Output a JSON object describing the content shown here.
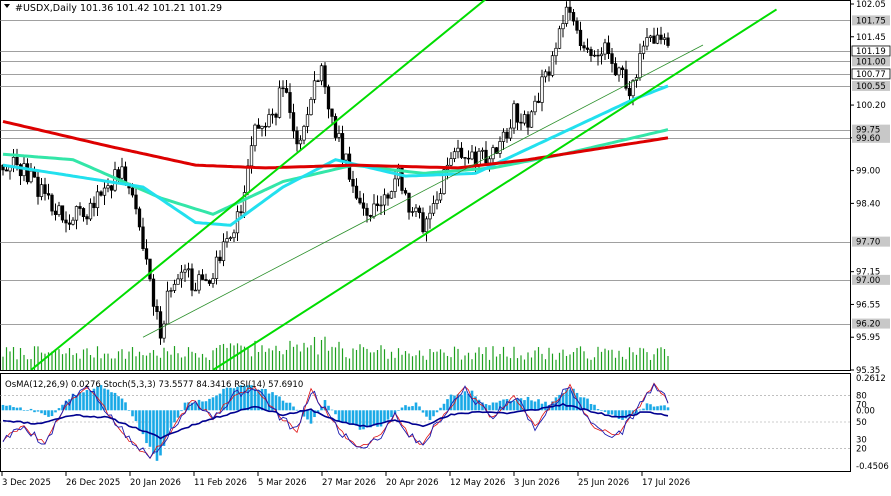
{
  "header": {
    "symbol_label": "#USDX,Daily",
    "ohlc_text": "101.36 101.42 101.21 101.29"
  },
  "indicator_header": "OsMA(12,26,9) 0.0276   Stoch(5,3,3) 73.5577 84.3416   RSI(14) 57.6910",
  "colors": {
    "background": "#ffffff",
    "candle": "#000000",
    "channel": "#00dd00",
    "ma_red": "#dd0000",
    "ma_aqua": "#22e0ee",
    "ma_mint": "#33e6a8",
    "volume": "#1fa01f",
    "osma": "#1aa9e6",
    "stoch_main": "#1c1cb0",
    "stoch_signal": "#e01010",
    "rsi": "#000090"
  },
  "chart_data": {
    "type": "candlestick",
    "timeframe": "Daily",
    "ylim": [
      95.35,
      102.05
    ],
    "price_axis_ticks": [
      "102.05",
      "101.45",
      "100.20",
      "99.60",
      "99.00",
      "98.40",
      "97.15",
      "96.55",
      "95.95",
      "95.35"
    ],
    "marked_levels": [
      "101.75",
      "101.19",
      "101.00",
      "100.77",
      "100.55",
      "99.75",
      "99.60",
      "97.70",
      "97.00",
      "96.20"
    ],
    "framed_levels": [
      "101.19",
      "100.77"
    ],
    "date_labels": [
      "3 Dec 2025",
      "26 Dec 2025",
      "20 Jan 2026",
      "11 Feb 2026",
      "5 Mar 2026",
      "27 Mar 2026",
      "20 Apr 2026",
      "12 May 2026",
      "3 Jun 2026",
      "25 Jun 2026",
      "17 Jul 2026"
    ],
    "last_close": 101.29,
    "path_anchors": [
      [
        0,
        99.1
      ],
      [
        5,
        99.05
      ],
      [
        12,
        98.55
      ],
      [
        18,
        98.1
      ],
      [
        24,
        98.25
      ],
      [
        30,
        98.75
      ],
      [
        34,
        98.95
      ],
      [
        37,
        98.6
      ],
      [
        40,
        97.6
      ],
      [
        43,
        96.5
      ],
      [
        45,
        96.0
      ],
      [
        47,
        96.7
      ],
      [
        52,
        97.1
      ],
      [
        55,
        96.9
      ],
      [
        60,
        97.1
      ],
      [
        64,
        97.7
      ],
      [
        68,
        98.3
      ],
      [
        72,
        99.7
      ],
      [
        78,
        100.1
      ],
      [
        80,
        100.6
      ],
      [
        84,
        99.4
      ],
      [
        88,
        100.4
      ],
      [
        91,
        100.8
      ],
      [
        94,
        99.9
      ],
      [
        100,
        98.8
      ],
      [
        104,
        98.2
      ],
      [
        107,
        98.4
      ],
      [
        111,
        98.6
      ],
      [
        113,
        98.95
      ],
      [
        116,
        98.4
      ],
      [
        120,
        98.0
      ],
      [
        124,
        98.5
      ],
      [
        128,
        99.2
      ],
      [
        132,
        99.35
      ],
      [
        137,
        99.2
      ],
      [
        142,
        99.4
      ],
      [
        146,
        100.05
      ],
      [
        150,
        99.95
      ],
      [
        154,
        100.55
      ],
      [
        158,
        101.2
      ],
      [
        161,
        101.95
      ],
      [
        164,
        101.5
      ],
      [
        168,
        101.1
      ],
      [
        172,
        101.3
      ],
      [
        176,
        100.8
      ],
      [
        179,
        100.5
      ],
      [
        182,
        101.0
      ],
      [
        185,
        101.45
      ],
      [
        188,
        101.35
      ],
      [
        190,
        101.29
      ]
    ],
    "ma_slow_anchors": [
      [
        0,
        99.9
      ],
      [
        30,
        99.45
      ],
      [
        55,
        99.1
      ],
      [
        75,
        99.05
      ],
      [
        100,
        99.1
      ],
      [
        130,
        99.05
      ],
      [
        150,
        99.2
      ],
      [
        170,
        99.4
      ],
      [
        190,
        99.6
      ]
    ],
    "ma_mid_anchors": [
      [
        0,
        99.3
      ],
      [
        20,
        99.2
      ],
      [
        45,
        98.5
      ],
      [
        60,
        98.2
      ],
      [
        80,
        98.8
      ],
      [
        100,
        99.1
      ],
      [
        120,
        98.95
      ],
      [
        140,
        99.05
      ],
      [
        160,
        99.3
      ],
      [
        190,
        99.75
      ]
    ],
    "ma_fast_anchors": [
      [
        0,
        99.1
      ],
      [
        20,
        98.9
      ],
      [
        40,
        98.7
      ],
      [
        55,
        98.05
      ],
      [
        65,
        98.0
      ],
      [
        80,
        98.7
      ],
      [
        95,
        99.2
      ],
      [
        115,
        98.9
      ],
      [
        135,
        98.95
      ],
      [
        160,
        99.7
      ],
      [
        180,
        100.3
      ],
      [
        190,
        100.55
      ]
    ],
    "channel_lines": [
      {
        "from": [
          8,
          95.35
        ],
        "to": [
          208,
          105.8
        ]
      },
      {
        "from": [
          40,
          95.95
        ],
        "to": [
          200,
          101.3
        ]
      },
      {
        "from": [
          60,
          95.35
        ],
        "to": [
          221,
          101.95
        ]
      }
    ],
    "oscillator": {
      "ylim": [
        -0.4506,
        0.2612
      ],
      "levels": [
        "0.2612",
        "80",
        "70",
        "0.00",
        "50",
        "30",
        "20",
        "-0.4506"
      ],
      "osma_anchors": [
        [
          0,
          0.05
        ],
        [
          8,
          0.0
        ],
        [
          14,
          -0.05
        ],
        [
          20,
          0.12
        ],
        [
          28,
          0.2
        ],
        [
          34,
          0.1
        ],
        [
          40,
          -0.2
        ],
        [
          44,
          -0.42
        ],
        [
          48,
          -0.15
        ],
        [
          52,
          0.05
        ],
        [
          58,
          0.08
        ],
        [
          64,
          0.18
        ],
        [
          70,
          0.2
        ],
        [
          76,
          0.15
        ],
        [
          82,
          0.05
        ],
        [
          88,
          -0.1
        ],
        [
          92,
          0.08
        ],
        [
          96,
          -0.08
        ],
        [
          102,
          -0.15
        ],
        [
          108,
          -0.12
        ],
        [
          114,
          0.02
        ],
        [
          118,
          0.05
        ],
        [
          122,
          -0.08
        ],
        [
          128,
          0.12
        ],
        [
          134,
          0.15
        ],
        [
          138,
          0.05
        ],
        [
          144,
          0.08
        ],
        [
          150,
          0.1
        ],
        [
          156,
          0.05
        ],
        [
          162,
          0.18
        ],
        [
          168,
          0.06
        ],
        [
          172,
          -0.02
        ],
        [
          178,
          -0.08
        ],
        [
          184,
          0.05
        ],
        [
          190,
          0.03
        ]
      ],
      "stoch_anchors": [
        [
          0,
          30
        ],
        [
          6,
          45
        ],
        [
          12,
          25
        ],
        [
          18,
          70
        ],
        [
          24,
          90
        ],
        [
          30,
          60
        ],
        [
          36,
          30
        ],
        [
          42,
          10
        ],
        [
          48,
          40
        ],
        [
          54,
          75
        ],
        [
          60,
          55
        ],
        [
          66,
          80
        ],
        [
          72,
          90
        ],
        [
          78,
          60
        ],
        [
          84,
          40
        ],
        [
          88,
          85
        ],
        [
          92,
          65
        ],
        [
          96,
          40
        ],
        [
          102,
          20
        ],
        [
          108,
          35
        ],
        [
          112,
          60
        ],
        [
          116,
          35
        ],
        [
          120,
          25
        ],
        [
          126,
          60
        ],
        [
          132,
          88
        ],
        [
          136,
          70
        ],
        [
          140,
          55
        ],
        [
          146,
          80
        ],
        [
          152,
          45
        ],
        [
          158,
          75
        ],
        [
          162,
          90
        ],
        [
          166,
          60
        ],
        [
          170,
          40
        ],
        [
          176,
          35
        ],
        [
          182,
          70
        ],
        [
          186,
          92
        ],
        [
          190,
          73.56
        ]
      ],
      "rsi_anchors": [
        [
          0,
          52
        ],
        [
          10,
          48
        ],
        [
          20,
          58
        ],
        [
          30,
          55
        ],
        [
          40,
          40
        ],
        [
          45,
          32
        ],
        [
          55,
          48
        ],
        [
          65,
          60
        ],
        [
          72,
          68
        ],
        [
          80,
          58
        ],
        [
          88,
          64
        ],
        [
          96,
          50
        ],
        [
          104,
          45
        ],
        [
          112,
          52
        ],
        [
          120,
          46
        ],
        [
          128,
          58
        ],
        [
          136,
          62
        ],
        [
          144,
          60
        ],
        [
          152,
          64
        ],
        [
          160,
          70
        ],
        [
          168,
          62
        ],
        [
          176,
          55
        ],
        [
          184,
          62
        ],
        [
          190,
          57.69
        ]
      ]
    }
  }
}
